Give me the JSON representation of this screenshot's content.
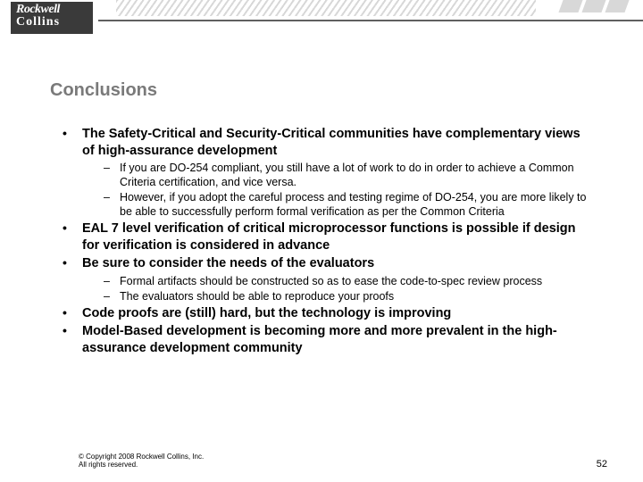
{
  "logo": {
    "top": "Rockwell",
    "bottom": "Collins"
  },
  "title": "Conclusions",
  "bullets": [
    {
      "text": "The Safety-Critical and Security-Critical communities have complementary views of high-assurance development",
      "sub": [
        "If you are DO-254 compliant, you still have a lot of work to do in order to achieve a Common Criteria certification, and vice versa.",
        "However, if you adopt the careful process and testing regime of DO-254, you are more likely to be able to successfully perform formal verification as per the Common Criteria"
      ]
    },
    {
      "text": "EAL 7 level verification of critical microprocessor functions is possible if design for verification is considered in advance",
      "sub": []
    },
    {
      "text": "Be sure to consider the needs of the evaluators",
      "sub": [
        "Formal artifacts should be constructed so as to ease the code-to-spec review process",
        "The evaluators should be able to reproduce your proofs"
      ]
    },
    {
      "text": "Code proofs are (still) hard, but the technology is improving",
      "sub": []
    },
    {
      "text": "Model-Based development is becoming more and more prevalent in the high-assurance development community",
      "sub": []
    }
  ],
  "footer": {
    "copyright": "© Copyright 2008 Rockwell Collins, Inc.",
    "rights": "All rights reserved.",
    "page": "52"
  }
}
